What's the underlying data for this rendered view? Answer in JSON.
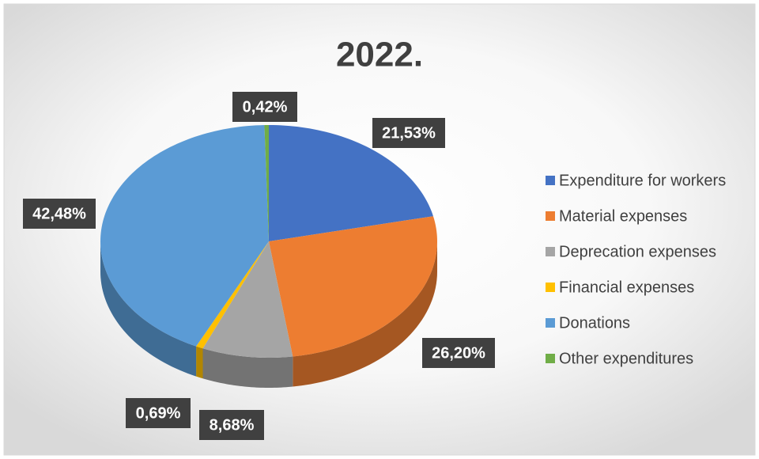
{
  "chart_data": {
    "type": "pie3d",
    "title": "2022.",
    "categories": [
      "Expenditure for workers",
      "Material expenses",
      "Deprecation expenses",
      "Financial expenses",
      "Donations",
      "Other expenditures"
    ],
    "values": [
      21.53,
      26.2,
      8.68,
      0.69,
      42.48,
      0.42
    ],
    "value_labels": [
      "21,53%",
      "26,20%",
      "8,68%",
      "0,69%",
      "42,48%",
      "0,42%"
    ],
    "colors": [
      "#4472c4",
      "#ed7d31",
      "#a5a5a5",
      "#ffc000",
      "#5b9bd5",
      "#70ad47"
    ],
    "legend": "right"
  }
}
